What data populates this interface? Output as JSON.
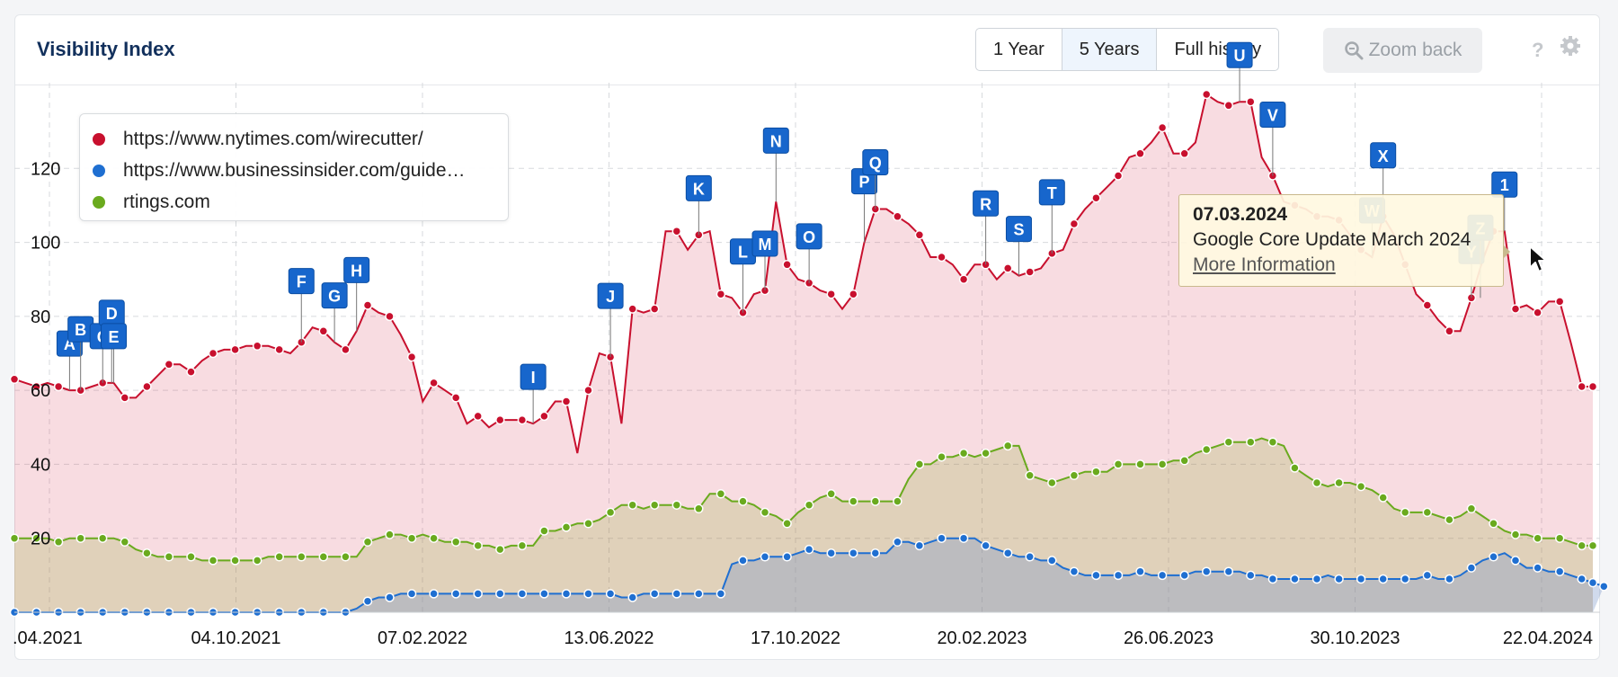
{
  "header": {
    "title": "Visibility Index",
    "ranges": [
      "1 Year",
      "5 Years",
      "Full history"
    ],
    "active_range": "5 Years",
    "zoom_back": "Zoom back",
    "help": "?"
  },
  "legend": [
    {
      "label": "https://www.nytimes.com/wirecutter/",
      "color": "#c8102e"
    },
    {
      "label": "https://www.businessinsider.com/guide…",
      "color": "#1f6fd1"
    },
    {
      "label": "rtings.com",
      "color": "#6aaa1e"
    }
  ],
  "tooltip": {
    "date": "07.03.2024",
    "text": "Google Core Update March 2024",
    "link": "More Information"
  },
  "chart_data": {
    "type": "area",
    "x_ticks": [
      ".04.2021",
      "04.10.2021",
      "07.02.2022",
      "13.06.2022",
      "17.10.2022",
      "20.02.2023",
      "26.06.2023",
      "30.10.2023",
      "22.04.2024"
    ],
    "y_ticks": [
      20,
      40,
      60,
      80,
      100,
      120
    ],
    "ylim": [
      0,
      140
    ],
    "grid": true,
    "legend_position": "top-left",
    "series": [
      {
        "name": "https://www.nytimes.com/wirecutter/",
        "color": "#c8102e",
        "values": [
          63,
          62,
          61,
          62,
          61,
          60,
          60,
          61,
          62,
          62,
          58,
          58,
          61,
          64,
          67,
          67,
          65,
          68,
          70,
          71,
          71,
          72,
          72,
          72,
          71,
          70,
          73,
          77,
          76,
          73,
          71,
          76,
          83,
          81,
          80,
          75,
          69,
          57,
          62,
          60,
          58,
          51,
          53,
          50,
          52,
          52,
          52,
          51,
          53,
          57,
          57,
          43,
          60,
          70,
          69,
          51,
          82,
          81,
          82,
          103,
          103,
          98,
          102,
          103,
          86,
          85,
          81,
          86,
          87,
          111,
          94,
          90,
          89,
          87,
          86,
          82,
          86,
          100,
          109,
          109,
          107,
          105,
          102,
          96,
          96,
          94,
          90,
          94,
          94,
          90,
          93,
          91,
          92,
          93,
          97,
          98,
          105,
          109,
          112,
          115,
          118,
          123,
          124,
          127,
          131,
          124,
          124,
          127,
          140,
          138,
          137,
          138,
          138,
          123,
          118,
          111,
          110,
          109,
          107,
          107,
          106,
          102,
          98,
          96,
          107,
          102,
          94,
          86,
          83,
          79,
          76,
          76,
          85,
          95,
          103,
          103,
          82,
          83,
          81,
          84,
          84,
          73,
          61,
          61
        ]
      },
      {
        "name": "https://www.businessinsider.com/guide…",
        "color": "#1f6fd1",
        "values": [
          0,
          0,
          0,
          0,
          0,
          0,
          0,
          0,
          0,
          0,
          0,
          0,
          0,
          0,
          0,
          0,
          0,
          0,
          0,
          0,
          0,
          0,
          0,
          0,
          0,
          0,
          0,
          0,
          0,
          0,
          0,
          1,
          3,
          4,
          4,
          5,
          5,
          5,
          5,
          5,
          5,
          5,
          5,
          5,
          5,
          5,
          5,
          5,
          5,
          5,
          5,
          5,
          5,
          5,
          5,
          4,
          4,
          5,
          5,
          5,
          5,
          5,
          5,
          5,
          5,
          13,
          14,
          14,
          15,
          15,
          15,
          16,
          17,
          16,
          16,
          16,
          16,
          16,
          16,
          16,
          19,
          19,
          18,
          19,
          20,
          20,
          20,
          20,
          18,
          17,
          16,
          15,
          15,
          14,
          14,
          12,
          11,
          10,
          10,
          10,
          10,
          10,
          11,
          10,
          10,
          10,
          10,
          11,
          11,
          11,
          11,
          11,
          10,
          10,
          9,
          9,
          9,
          9,
          9,
          10,
          9,
          9,
          9,
          9,
          9,
          9,
          9,
          9,
          10,
          9,
          9,
          10,
          12,
          14,
          15,
          16,
          14,
          12,
          12,
          11,
          11,
          10,
          9,
          8,
          7
        ]
      },
      {
        "name": "rtings.com",
        "color": "#6aaa1e",
        "values": [
          20,
          20,
          20,
          20,
          19,
          20,
          20,
          20,
          20,
          20,
          19,
          17,
          16,
          15,
          15,
          15,
          15,
          14,
          14,
          14,
          14,
          14,
          14,
          15,
          15,
          15,
          15,
          15,
          15,
          15,
          15,
          15,
          19,
          20,
          21,
          21,
          20,
          21,
          20,
          19,
          19,
          19,
          18,
          18,
          17,
          18,
          18,
          18,
          22,
          22,
          23,
          24,
          24,
          25,
          27,
          29,
          29,
          28,
          29,
          29,
          29,
          28,
          28,
          32,
          32,
          30,
          30,
          29,
          27,
          26,
          24,
          27,
          29,
          31,
          32,
          30,
          30,
          30,
          30,
          30,
          30,
          36,
          40,
          40,
          42,
          42,
          43,
          42,
          43,
          44,
          45,
          45,
          37,
          36,
          35,
          36,
          37,
          38,
          38,
          38,
          40,
          40,
          40,
          40,
          40,
          41,
          41,
          43,
          44,
          45,
          46,
          46,
          46,
          47,
          46,
          45,
          39,
          37,
          35,
          34,
          35,
          35,
          34,
          33,
          31,
          28,
          27,
          27,
          27,
          26,
          25,
          26,
          28,
          26,
          24,
          22,
          21,
          21,
          20,
          20,
          20,
          19,
          18,
          18
        ]
      }
    ],
    "flags": [
      {
        "label": "A",
        "index": 5
      },
      {
        "label": "B",
        "index": 6
      },
      {
        "label": "C",
        "index": 8
      },
      {
        "label": "D",
        "index": 8
      },
      {
        "label": "E",
        "index": 9
      },
      {
        "label": "F",
        "index": 26
      },
      {
        "label": "G",
        "index": 29
      },
      {
        "label": "H",
        "index": 31
      },
      {
        "label": "I",
        "index": 47
      },
      {
        "label": "J",
        "index": 54
      },
      {
        "label": "K",
        "index": 62
      },
      {
        "label": "L",
        "index": 66
      },
      {
        "label": "M",
        "index": 68
      },
      {
        "label": "N",
        "index": 69
      },
      {
        "label": "O",
        "index": 72
      },
      {
        "label": "P",
        "index": 77
      },
      {
        "label": "Q",
        "index": 78
      },
      {
        "label": "R",
        "index": 88
      },
      {
        "label": "S",
        "index": 91
      },
      {
        "label": "T",
        "index": 94
      },
      {
        "label": "U",
        "index": 111
      },
      {
        "label": "V",
        "index": 114
      },
      {
        "label": "W",
        "index": 123
      },
      {
        "label": "X",
        "index": 124
      },
      {
        "label": "Y",
        "index": 132
      },
      {
        "label": "Z",
        "index": 132
      },
      {
        "label": "1",
        "index": 135
      }
    ]
  }
}
